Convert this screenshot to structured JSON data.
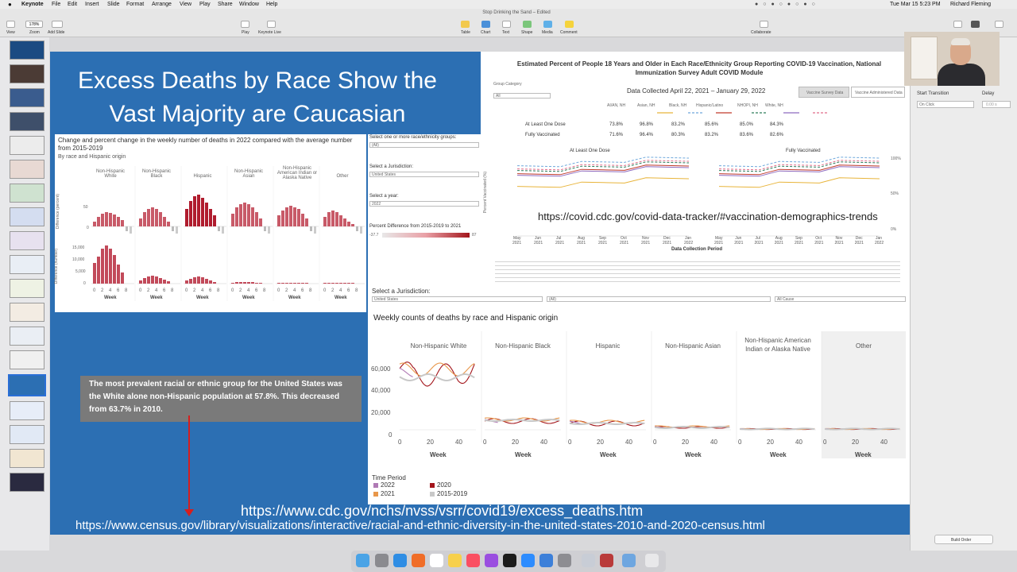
{
  "menubar": {
    "app": "Keynote",
    "items": [
      "File",
      "Edit",
      "Insert",
      "Slide",
      "Format",
      "Arrange",
      "View",
      "Play",
      "Share",
      "Window",
      "Help"
    ],
    "datetime": "Tue Mar 15  5:23 PM",
    "user": "Richard Fleming"
  },
  "toolbar": {
    "doc_title": "Stop Drinking the Sand – Edited",
    "zoom": "178%",
    "left": [
      "View",
      "Zoom",
      "Add Slide"
    ],
    "middle": [
      "Play",
      "Keynote Live"
    ],
    "insert": [
      "Table",
      "Chart",
      "Text",
      "Shape",
      "Media",
      "Comment"
    ],
    "collaborate": "Collaborate"
  },
  "slide": {
    "title": "Excess Deaths by Race Show the Vast Majority are Caucasian",
    "panel1": {
      "heading": "Change and percent change in the weekly number of deaths in 2022 compared with the average number from 2015-2019",
      "subheading": "By race and Hispanic origin",
      "groups": [
        "Non-Hispanic White",
        "Non-Hispanic Black",
        "Hispanic",
        "Non-Hispanic Asian",
        "Non-Hispanic American Indian or Alaska Native",
        "Other"
      ],
      "ylabel_top": "Difference (percent)",
      "ylabel_bottom": "Difference (number)",
      "yticks_top": [
        "50",
        "0"
      ],
      "yticks_bottom": [
        "15,000",
        "10,000",
        "5,000",
        "0"
      ],
      "xticks": [
        "0",
        "2",
        "4",
        "6",
        "8"
      ],
      "xlabel": "Week"
    },
    "filters": {
      "race_label": "Select one or more race/ethnicity groups:",
      "race_value": "(All)",
      "jurisdiction_label": "Select a Jurisdiction:",
      "jurisdiction_value": "United States",
      "year_label": "Select a year:",
      "year_value": "2022",
      "pct_label": "Percent Difference from 2015-2019 to 2021",
      "pct_min": "-37.7",
      "pct_max": "87"
    },
    "panel2": {
      "title": "Estimated Percent of People 18 Years and Older in Each Race/Ethnicity Group Reporting COVID-19 Vaccination, National Immunization Survey Adult COVID Module",
      "group_category_label": "Group Category",
      "group_category_value": "All",
      "date_range": "Data Collected April 22, 2021 – January 29, 2022",
      "buttons": [
        "Vaccine Survey Data",
        "Vaccine Administered Data"
      ],
      "columns": [
        "AI/AN, NH",
        "Asian, NH",
        "Black, NH",
        "Hispanic/Latino",
        "NHOPI, NH",
        "White, NH"
      ],
      "rows": [
        {
          "label": "At Least One Dose",
          "values": [
            "73.8%",
            "96.8%",
            "83.2%",
            "85.6%",
            "85.0%",
            "84.3%"
          ]
        },
        {
          "label": "Fully Vaccinated",
          "values": [
            "71.6%",
            "96.4%",
            "80.3%",
            "83.2%",
            "83.6%",
            "82.6%"
          ]
        }
      ],
      "subchart_titles": [
        "At Least One Dose",
        "Fully Vaccinated"
      ],
      "ylabel": "Percent Vaccinated (%)",
      "yticks": [
        "100%",
        "50%",
        "0%"
      ],
      "months": [
        "May 2021",
        "Jun 2021",
        "Jul 2021",
        "Aug 2021",
        "Sep 2021",
        "Oct 2021",
        "Nov 2021",
        "Dec 2021",
        "Jan 2022"
      ],
      "xlabel": "Data Collection Period",
      "url": "https://covid.cdc.gov/covid-data-tracker/#vaccination-demographics-trends"
    },
    "panel4": {
      "select_label": "Select a Jurisdiction:",
      "select_values": [
        "United States",
        "(All)",
        "All Cause"
      ],
      "title": "Weekly counts of deaths by race and Hispanic origin",
      "groups": [
        "Non-Hispanic White",
        "Non-Hispanic Black",
        "Hispanic",
        "Non-Hispanic Asian",
        "Non-Hispanic American Indian or Alaska Native",
        "Other"
      ],
      "yticks": [
        "60,000",
        "40,000",
        "20,000",
        "0"
      ],
      "xticks": [
        "0",
        "20",
        "40"
      ],
      "xlabel": "Week",
      "legend_title": "Time Period",
      "legend": [
        {
          "label": "2022",
          "color": "#b07ab5"
        },
        {
          "label": "2020",
          "color": "#a3151b"
        },
        {
          "label": "2021",
          "color": "#e8974a"
        },
        {
          "label": "2015-2019",
          "color": "#c8c8c8"
        }
      ]
    },
    "note": "The most prevalent racial or ethnic group for the United States was the White alone non-Hispanic population at 57.8%. This decreased from 63.7% in 2010.",
    "url1": "https://www.cdc.gov/nchs/nvss/vsrr/covid19/excess_deaths.htm",
    "url2": "https://www.census.gov/library/visualizations/interactive/racial-and-ethnic-diversity-in-the-united-states-2010-and-2020-census.html"
  },
  "inspector": {
    "start_transition_label": "Start Transition",
    "delay_label": "Delay",
    "start_transition_value": "On Click",
    "delay_value": "0.00 s",
    "build_order": "Build Order"
  }
}
